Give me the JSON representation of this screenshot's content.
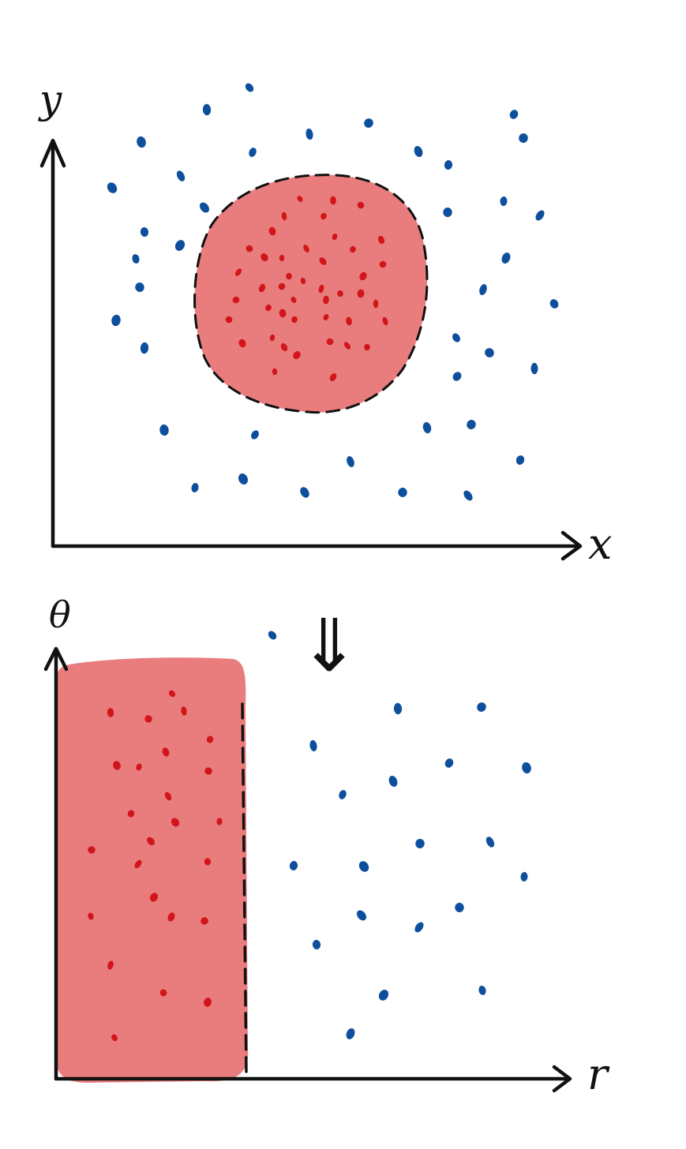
{
  "colors": {
    "ink": "#111111",
    "inner_fill": "#e97d7d",
    "inner_points": "#d2151b",
    "outer_points": "#0d4f9c",
    "background": "#ffffff"
  },
  "top_panel": {
    "x_axis_label": "x",
    "y_axis_label": "y"
  },
  "transform_arrow": {
    "symbol": "⇓"
  },
  "bottom_panel": {
    "x_axis_label": "r",
    "y_axis_label": "θ"
  }
}
